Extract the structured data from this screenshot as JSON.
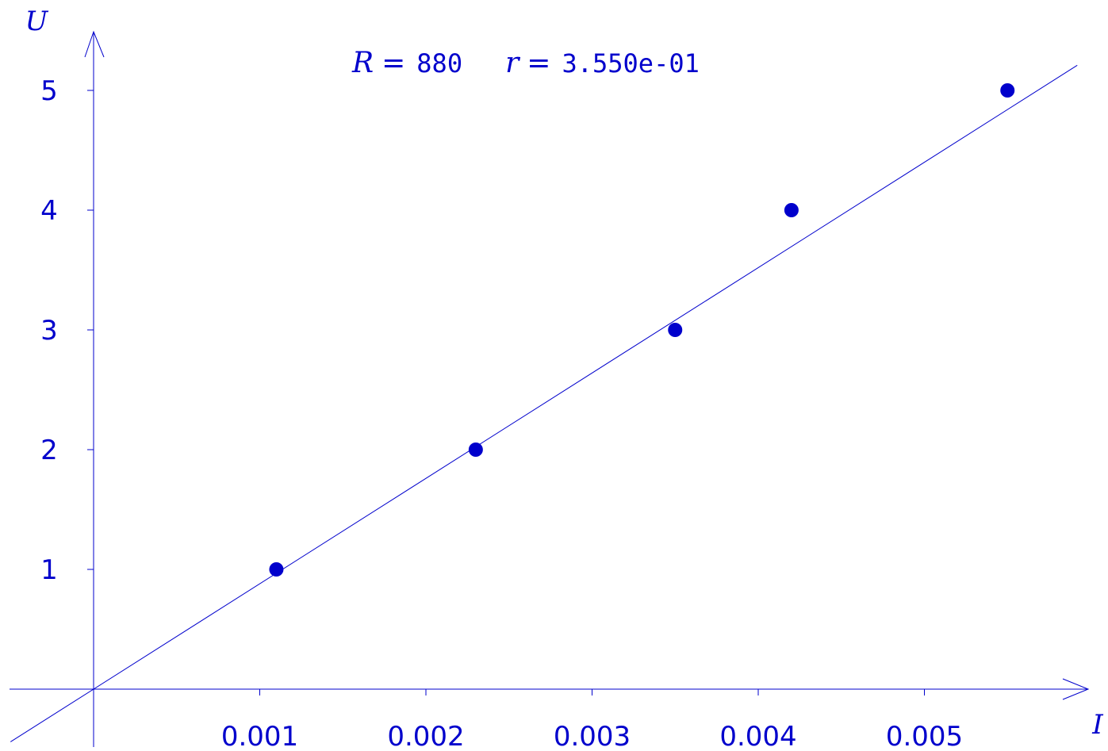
{
  "chart_data": {
    "type": "scatter",
    "title": "",
    "xlabel": "I",
    "ylabel": "U",
    "xlim": [
      -0.0005,
      0.006
    ],
    "ylim": [
      -0.5,
      5.5
    ],
    "x_ticks": [
      0.001,
      0.002,
      0.003,
      0.004,
      0.005
    ],
    "x_tick_labels": [
      "0.001",
      "0.002",
      "0.003",
      "0.004",
      "0.005"
    ],
    "y_ticks": [
      1,
      2,
      3,
      4,
      5
    ],
    "y_tick_labels": [
      "1",
      "2",
      "3",
      "4",
      "5"
    ],
    "grid": false,
    "series": [
      {
        "type": "scatter",
        "points": [
          {
            "x": 0.0011,
            "y": 1
          },
          {
            "x": 0.0023,
            "y": 2
          },
          {
            "x": 0.0035,
            "y": 3
          },
          {
            "x": 0.0042,
            "y": 4
          },
          {
            "x": 0.0055,
            "y": 5
          }
        ]
      },
      {
        "type": "line",
        "slope": 880,
        "intercept": 0
      }
    ],
    "annotation": {
      "r_var": "R",
      "r_eq": "=",
      "r_value": "880",
      "rr_var": "r",
      "rr_eq": "=",
      "rr_value": "3.550e-01"
    },
    "color": "#0000cc"
  }
}
